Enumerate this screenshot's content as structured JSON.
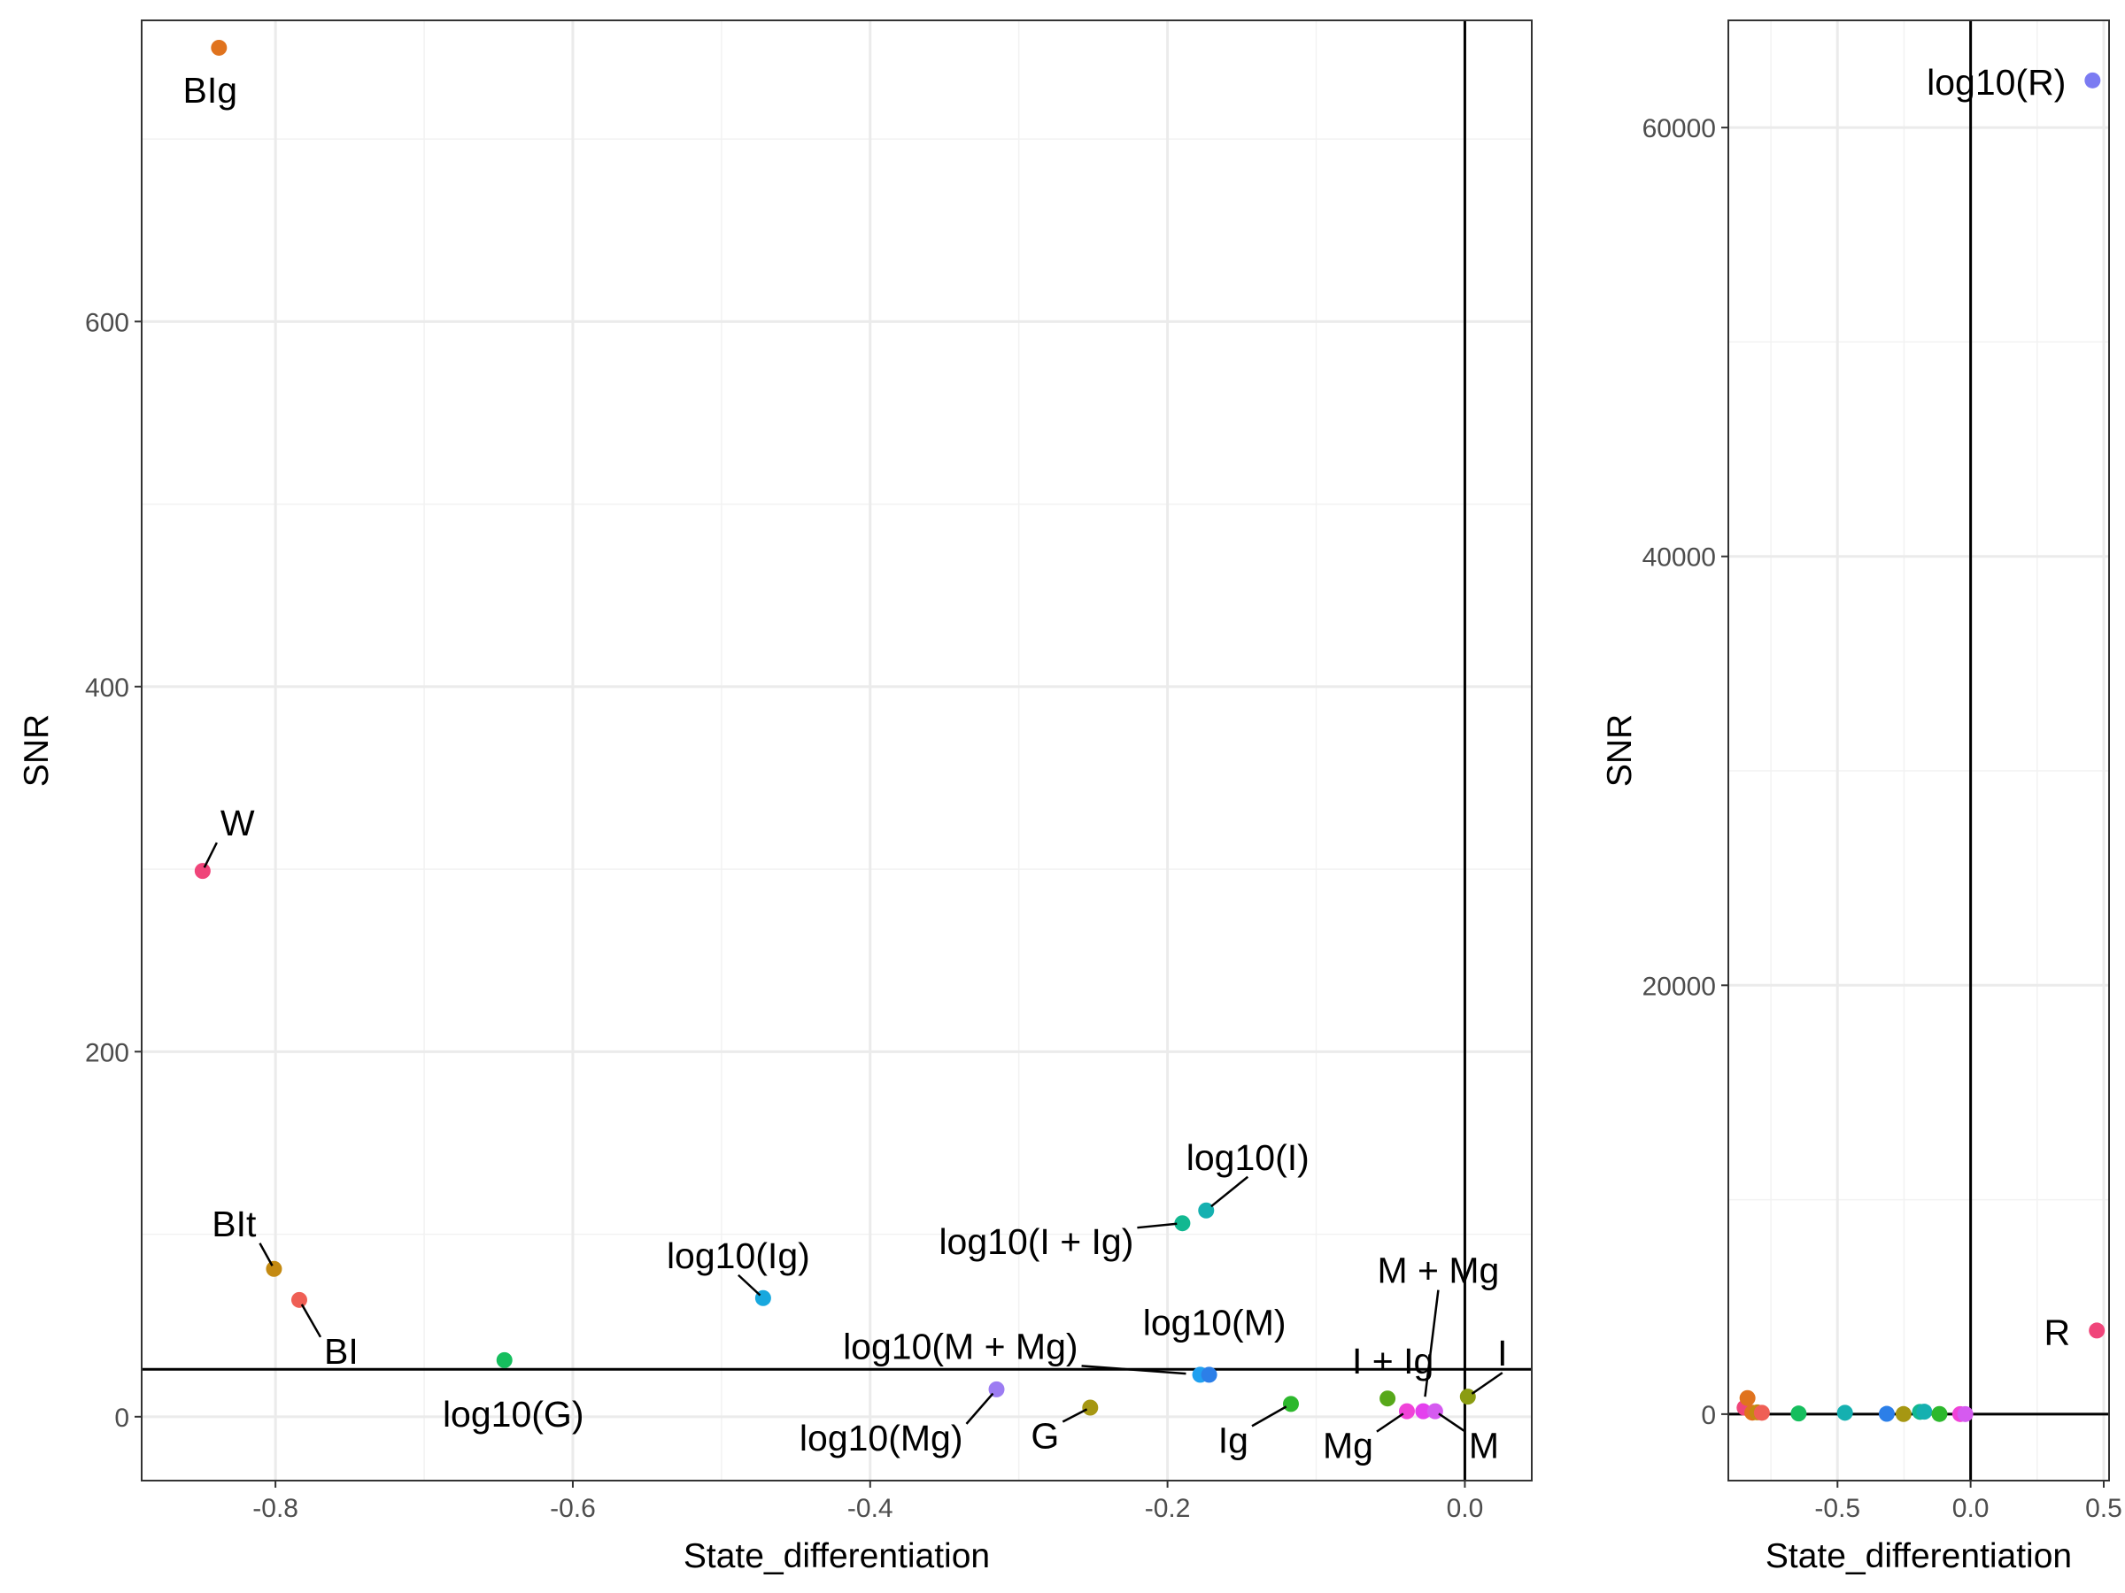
{
  "chart_data": [
    {
      "type": "scatter",
      "xlabel": "State_differentiation",
      "ylabel": "SNR",
      "xlim": [
        -0.89,
        0.045
      ],
      "ylim": [
        -35,
        765
      ],
      "x_ticks": [
        -0.8,
        -0.6,
        -0.4,
        -0.2,
        0.0
      ],
      "x_tick_labels": [
        "-0.8",
        "-0.6",
        "-0.4",
        "-0.2",
        "0.0"
      ],
      "y_ticks": [
        0,
        200,
        400,
        600
      ],
      "y_tick_labels": [
        "0",
        "200",
        "400",
        "600"
      ],
      "grid": true,
      "reference_lines": {
        "vertical_x": 0,
        "horizontal_y": 26
      },
      "points": [
        {
          "label": "BIg",
          "x": -0.838,
          "y": 750,
          "color": "#E0731E"
        },
        {
          "label": "W",
          "x": -0.849,
          "y": 299,
          "color": "#F0457A"
        },
        {
          "label": "BIt",
          "x": -0.801,
          "y": 81,
          "color": "#C48A12"
        },
        {
          "label": "BI",
          "x": -0.784,
          "y": 64,
          "color": "#EF5F55"
        },
        {
          "label": "log10(G)",
          "x": -0.646,
          "y": 31,
          "color": "#16BE5E"
        },
        {
          "label": "log10(Ig)",
          "x": -0.472,
          "y": 65,
          "color": "#18A8DE"
        },
        {
          "label": "log10(Mg)",
          "x": -0.315,
          "y": 15,
          "color": "#9C7CF2"
        },
        {
          "label": "G",
          "x": -0.252,
          "y": 5,
          "color": "#A69712"
        },
        {
          "label": "log10(I + Ig)",
          "x": -0.19,
          "y": 106,
          "color": "#12B891"
        },
        {
          "label": "log10(I)",
          "x": -0.174,
          "y": 113,
          "color": "#15B0B0"
        },
        {
          "label": "log10(M + Mg)",
          "x": -0.178,
          "y": 23,
          "color": "#20A0F0"
        },
        {
          "label": "log10(M)",
          "x": -0.172,
          "y": 23,
          "color": "#2C7FE8"
        },
        {
          "label": "Ig",
          "x": -0.117,
          "y": 7,
          "color": "#2DB82D"
        },
        {
          "label": "I + Ig",
          "x": -0.052,
          "y": 10,
          "color": "#57A81A"
        },
        {
          "label": "Mg",
          "x": -0.039,
          "y": 3,
          "color": "#F043D8"
        },
        {
          "label": "M + Mg",
          "x": -0.028,
          "y": 3,
          "color": "#E440EE"
        },
        {
          "label": "M",
          "x": -0.02,
          "y": 3,
          "color": "#D55AF0"
        },
        {
          "label": "I",
          "x": 0.002,
          "y": 11,
          "color": "#8B9C12"
        }
      ]
    },
    {
      "type": "scatter",
      "xlabel": "State_differentiation",
      "ylabel": "SNR",
      "xlim": [
        -0.91,
        0.52
      ],
      "ylim": [
        -3100,
        65000
      ],
      "x_ticks": [
        -0.5,
        0.0,
        0.5
      ],
      "x_tick_labels": [
        "-0.5",
        "0.0",
        "0.5"
      ],
      "y_ticks": [
        0,
        20000,
        40000,
        60000
      ],
      "y_tick_labels": [
        "0",
        "20000",
        "40000",
        "60000"
      ],
      "grid": true,
      "reference_lines": {
        "vertical_x": 0,
        "horizontal_y": 0
      },
      "points": [
        {
          "label": "log10(R)",
          "x": 0.458,
          "y": 62200,
          "color": "#7B7BF2"
        },
        {
          "label": "R",
          "x": 0.474,
          "y": 3900,
          "color": "#F0457A"
        },
        {
          "label": "",
          "x": -0.849,
          "y": 299,
          "color": "#F0457A"
        },
        {
          "label": "",
          "x": -0.838,
          "y": 750,
          "color": "#E0731E"
        },
        {
          "label": "",
          "x": -0.82,
          "y": 70,
          "color": "#E0731E"
        },
        {
          "label": "",
          "x": -0.801,
          "y": 81,
          "color": "#C48A12"
        },
        {
          "label": "",
          "x": -0.784,
          "y": 64,
          "color": "#EF5F55"
        },
        {
          "label": "",
          "x": -0.646,
          "y": 31,
          "color": "#16BE5E"
        },
        {
          "label": "",
          "x": -0.472,
          "y": 65,
          "color": "#15B0B0"
        },
        {
          "label": "",
          "x": -0.315,
          "y": 15,
          "color": "#2C7FE8"
        },
        {
          "label": "",
          "x": -0.252,
          "y": 5,
          "color": "#A69712"
        },
        {
          "label": "",
          "x": -0.19,
          "y": 106,
          "color": "#12B891"
        },
        {
          "label": "",
          "x": -0.174,
          "y": 113,
          "color": "#15B0B0"
        },
        {
          "label": "",
          "x": -0.117,
          "y": 7,
          "color": "#2DB82D"
        },
        {
          "label": "",
          "x": -0.039,
          "y": 3,
          "color": "#F043D8"
        },
        {
          "label": "",
          "x": -0.02,
          "y": 3,
          "color": "#D55AF0"
        }
      ]
    }
  ]
}
